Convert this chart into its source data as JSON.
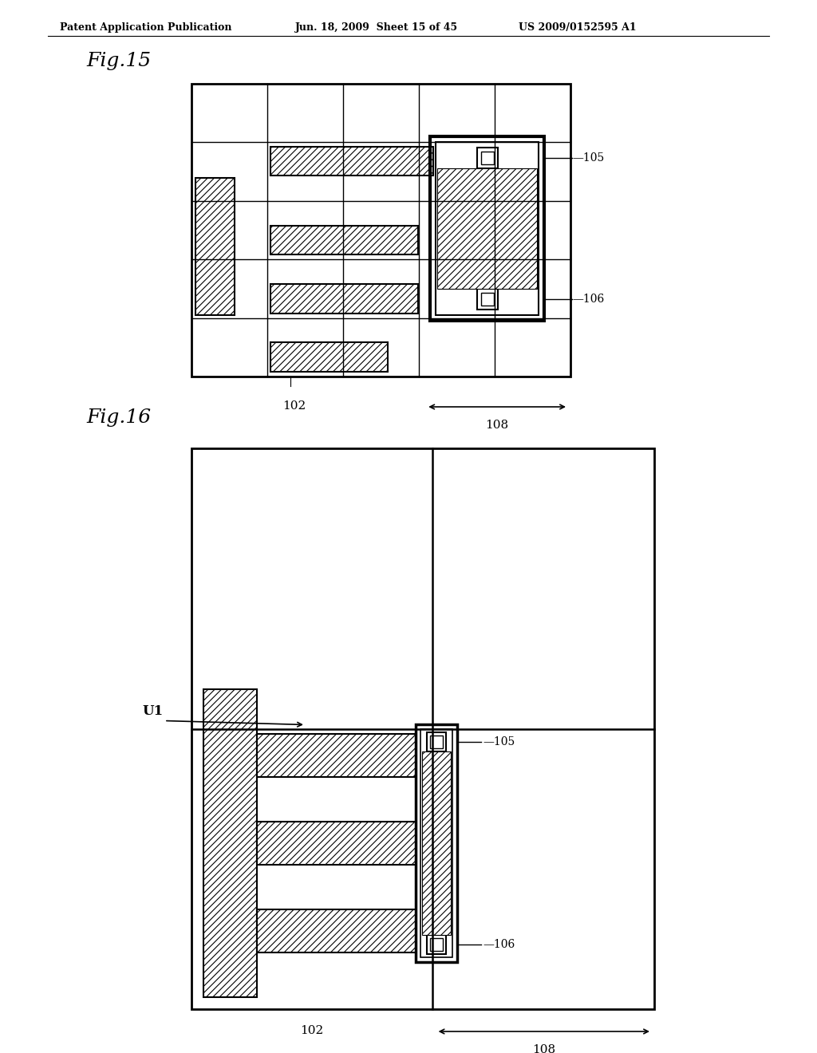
{
  "header_left": "Patent Application Publication",
  "header_mid": "Jun. 18, 2009  Sheet 15 of 45",
  "header_right": "US 2009/0152595 A1",
  "fig15_label": "Fig.15",
  "fig16_label": "Fig.16",
  "background_color": "#ffffff",
  "line_color": "#000000",
  "label_102": "102",
  "label_105": "105",
  "label_106": "106",
  "label_108": "108",
  "label_U1": "U1"
}
